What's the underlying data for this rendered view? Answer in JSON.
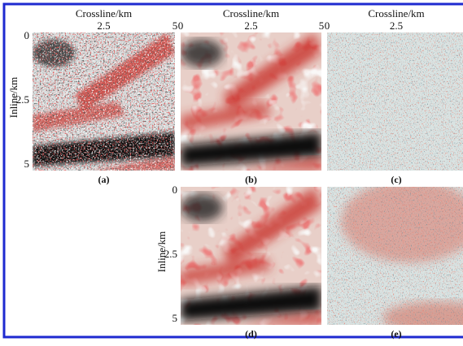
{
  "panels": [
    {
      "caption": "(a)",
      "x_axis_label": "Crossline/km",
      "x_ticks": [
        "2.5",
        "5"
      ],
      "y_axis_label": "Inline/km",
      "y_ticks": [
        "0",
        "2.5",
        "5"
      ]
    },
    {
      "caption": "(b)",
      "x_axis_label": "Crossline/km",
      "x_ticks": [
        "0",
        "2.5",
        "5"
      ]
    },
    {
      "caption": "(c)",
      "x_axis_label": "Crossline/km",
      "x_ticks": [
        "0",
        "2.5"
      ]
    },
    {
      "caption": "(d)",
      "y_axis_label": "Inline/km",
      "y_ticks": [
        "0",
        "2.5",
        "5"
      ]
    },
    {
      "caption": "(e)"
    }
  ]
}
